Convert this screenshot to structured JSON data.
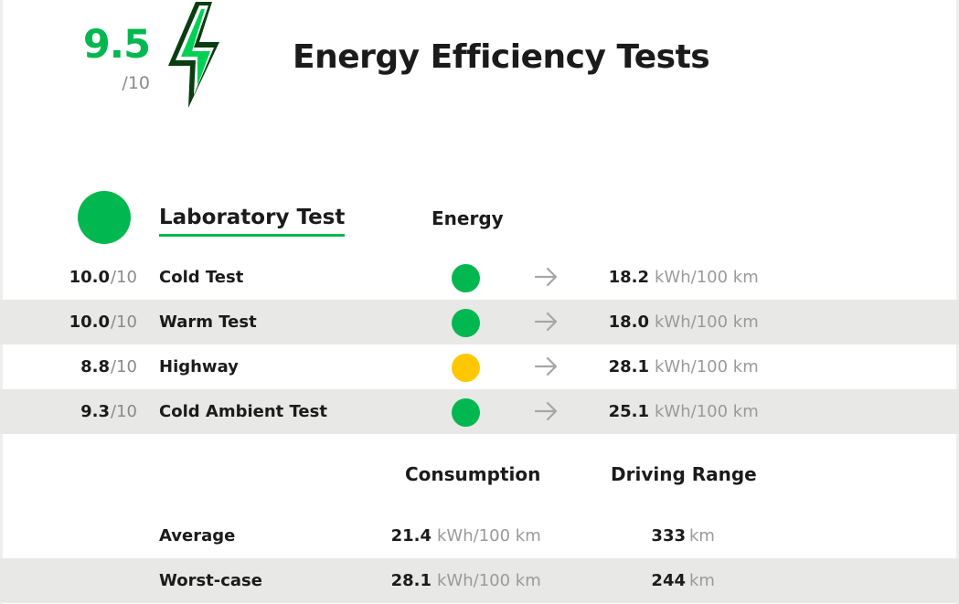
{
  "header": {
    "score": "9.5",
    "score_denominator": "/10",
    "title": "Energy Efficiency Tests",
    "icon": "lightning-bolt-icon"
  },
  "laboratory": {
    "title": "Laboratory Test",
    "energy_header": "Energy",
    "tests": [
      {
        "score": "10.0",
        "denominator": "/10",
        "name": "Cold Test",
        "status_color": "#00b84f",
        "value": "18.2",
        "unit": "kWh/100 km"
      },
      {
        "score": "10.0",
        "denominator": "/10",
        "name": "Warm Test",
        "status_color": "#00b84f",
        "value": "18.0",
        "unit": "kWh/100 km"
      },
      {
        "score": "8.8",
        "denominator": "/10",
        "name": "Highway",
        "status_color": "#ffc700",
        "value": "28.1",
        "unit": "kWh/100 km"
      },
      {
        "score": "9.3",
        "denominator": "/10",
        "name": "Cold Ambient Test",
        "status_color": "#00b84f",
        "value": "25.1",
        "unit": "kWh/100 km"
      }
    ]
  },
  "summary": {
    "consumption_header": "Consumption",
    "range_header": "Driving Range",
    "rows": [
      {
        "label": "Average",
        "consumption": "21.4",
        "consumption_unit": "kWh/100 km",
        "range": "333",
        "range_unit": "km"
      },
      {
        "label": "Worst-case",
        "consumption": "28.1",
        "consumption_unit": "kWh/100 km",
        "range": "244",
        "range_unit": "km"
      }
    ]
  },
  "colors": {
    "accent_green": "#00b84f",
    "dark_green": "#0b3d12",
    "warning_yellow": "#ffc700",
    "row_shade": "#e8e8e6"
  }
}
